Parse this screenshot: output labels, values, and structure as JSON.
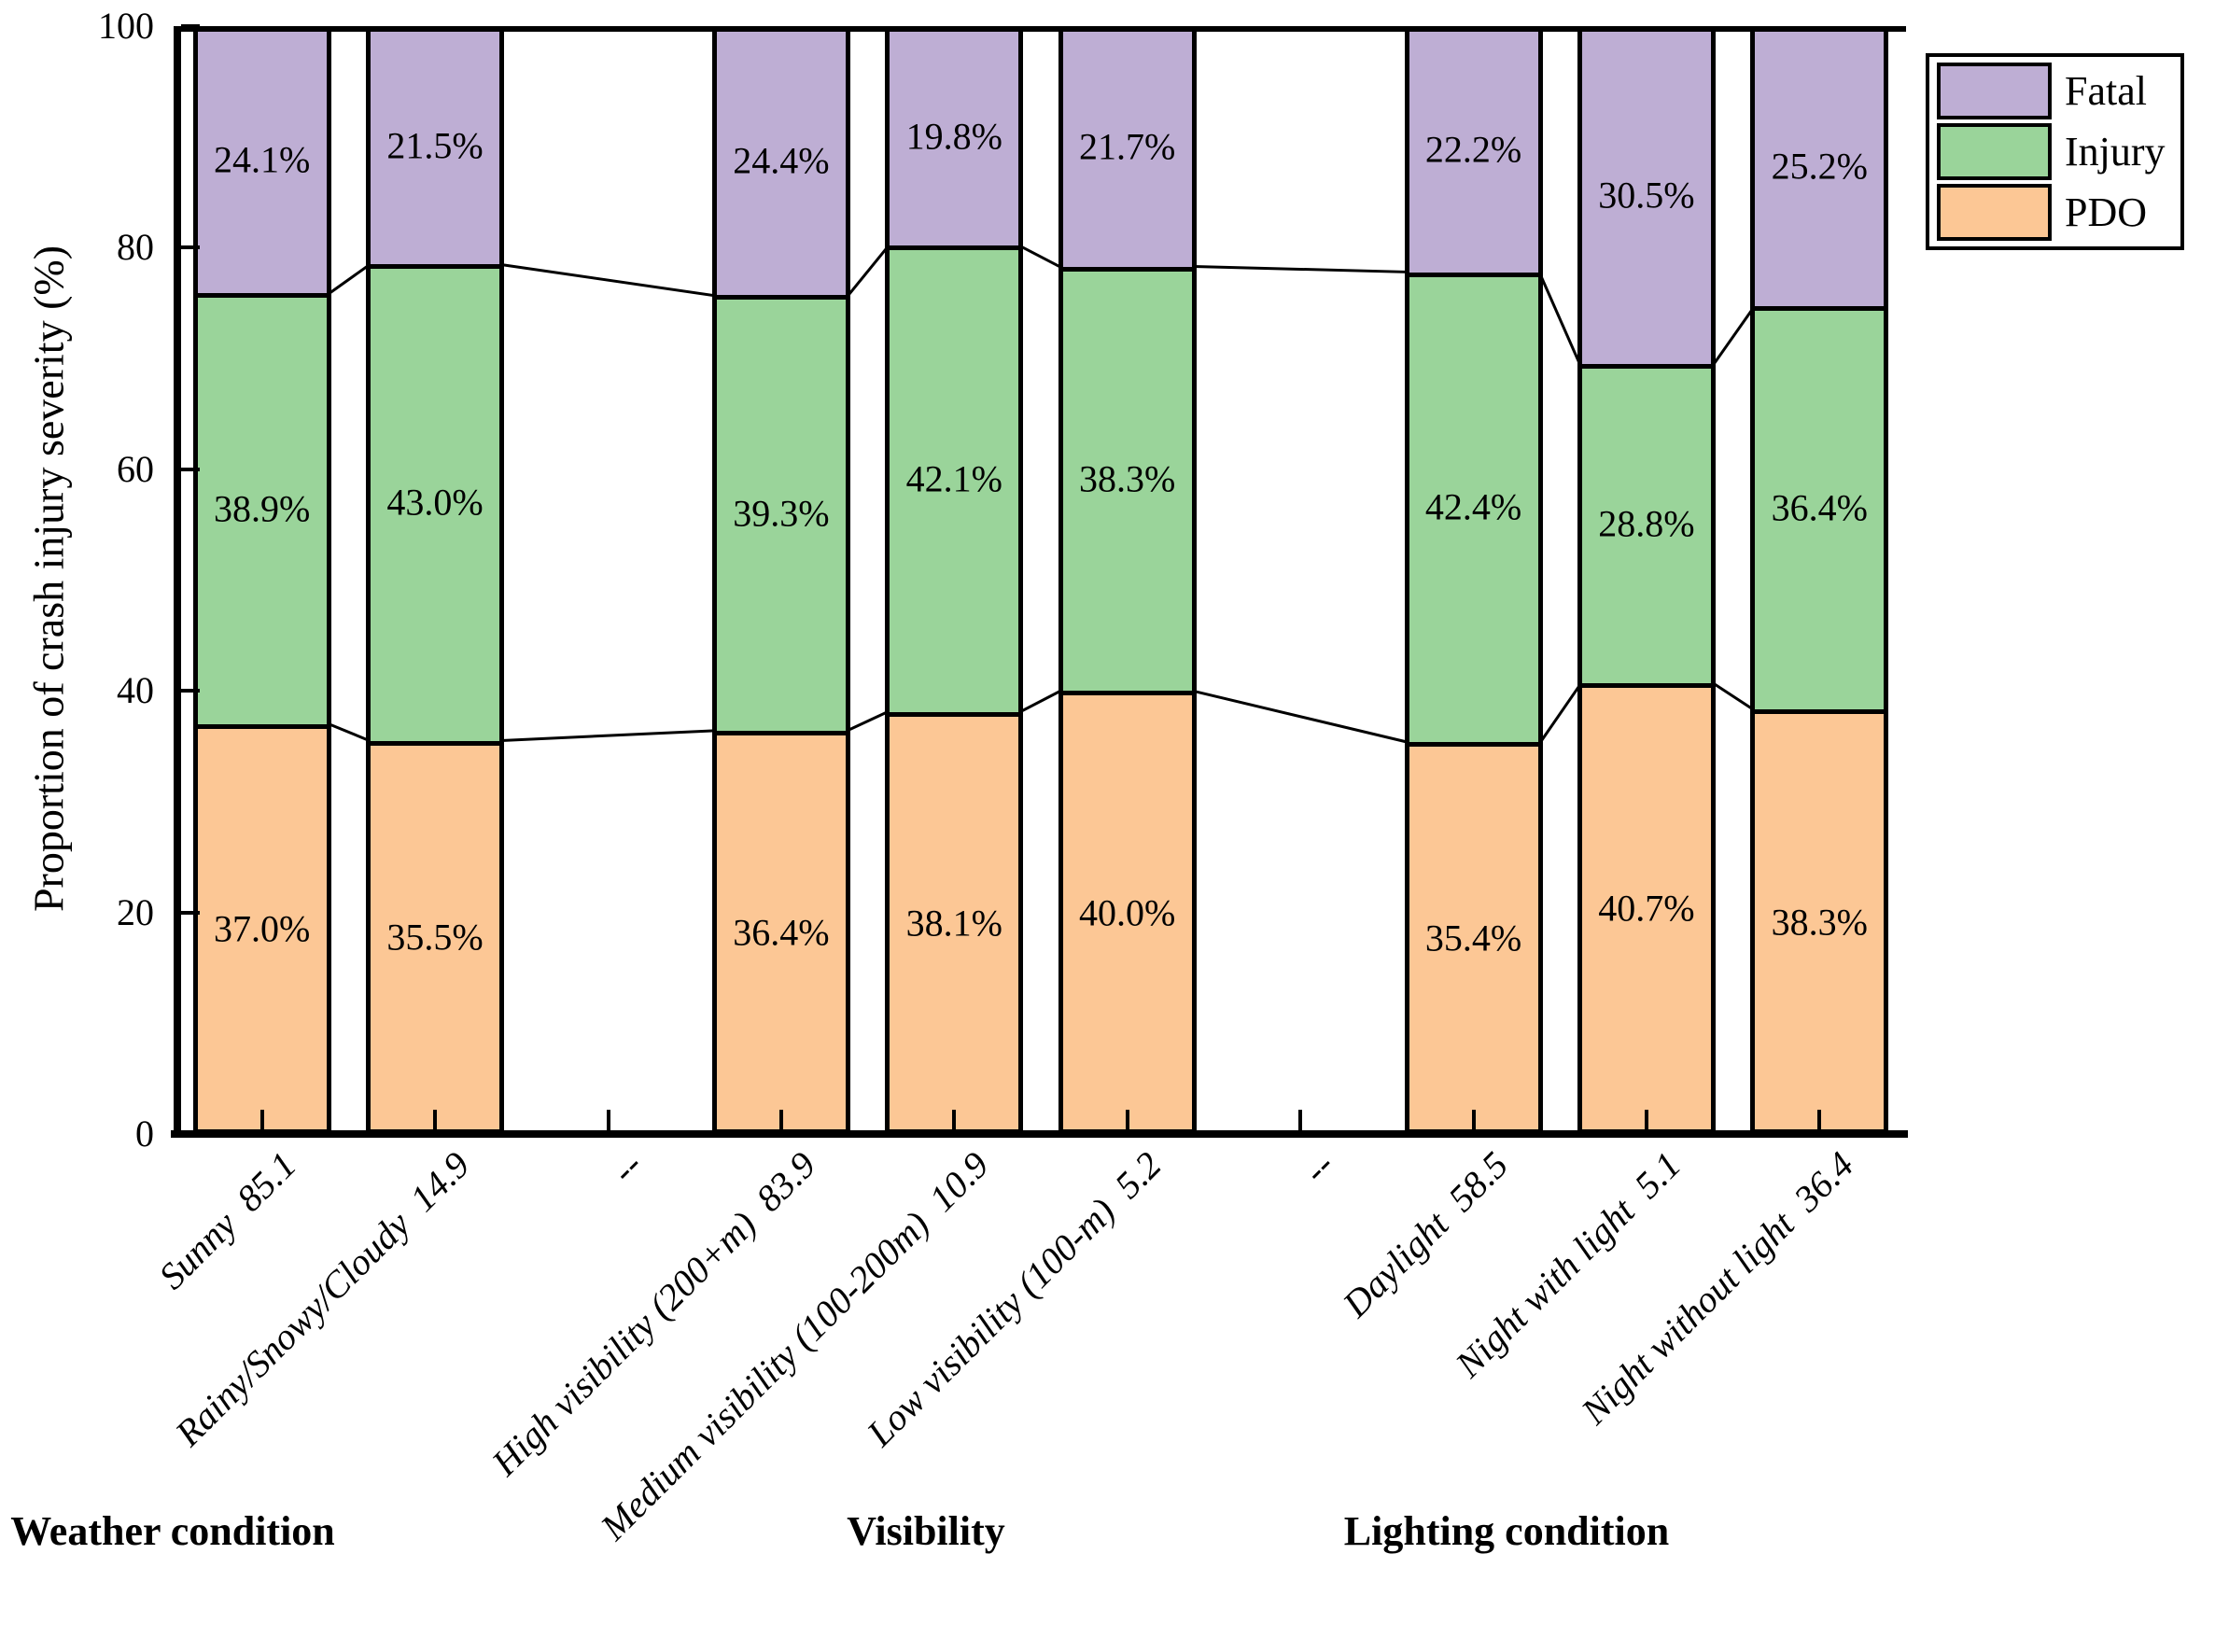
{
  "figure": {
    "background_color": "#ffffff",
    "y_axis": {
      "title": "Proportion of crash injury severity (%)",
      "tick_labels": [
        "0",
        "20",
        "40",
        "60",
        "80",
        "100"
      ],
      "range": [
        0,
        100
      ]
    },
    "x_axis": {
      "group_labels": [
        {
          "label": "Weather condition"
        },
        {
          "label": "Visibility"
        },
        {
          "label": "Lighting condition"
        }
      ]
    },
    "legend": {
      "position": "upper-right",
      "entries": [
        {
          "label": "Fatal",
          "color": "#beaed4"
        },
        {
          "label": "Injury",
          "color": "#9ad49a"
        },
        {
          "label": "PDO",
          "color": "#fcc795"
        }
      ]
    }
  },
  "chart_data": {
    "type": "bar",
    "subtype": "stacked-percentage-with-connectors",
    "title": "",
    "xlabel": "",
    "ylabel": "Proportion of crash injury severity (%)",
    "ylim": [
      0,
      100
    ],
    "grid": false,
    "legend_position": "upper right",
    "series_order_bottom_to_top": [
      "PDO",
      "Injury",
      "Fatal"
    ],
    "series_colors": {
      "PDO": "#fcc795",
      "Injury": "#9ad49a",
      "Fatal": "#beaed4"
    },
    "bar_outline_color": "#000000",
    "categories": [
      {
        "label": "Sunny  85.1",
        "name": "Sunny",
        "group": "Weather condition",
        "share_pct": 85.1,
        "empty": false,
        "values": {
          "PDO": 37.0,
          "Injury": 38.9,
          "Fatal": 24.1
        }
      },
      {
        "label": "Rainy/Snowy/Cloudy  14.9",
        "name": "Rainy/Snowy/Cloudy",
        "group": "Weather condition",
        "share_pct": 14.9,
        "empty": false,
        "values": {
          "PDO": 35.5,
          "Injury": 43.0,
          "Fatal": 21.5
        }
      },
      {
        "label": "--",
        "name": "",
        "group": "",
        "share_pct": null,
        "empty": true,
        "values": null
      },
      {
        "label": "High visibility (200+m)  83.9",
        "name": "High visibility (200+m)",
        "group": "Visibility",
        "share_pct": 83.9,
        "empty": false,
        "values": {
          "PDO": 36.4,
          "Injury": 39.3,
          "Fatal": 24.4
        }
      },
      {
        "label": "Medium visibility (100-200m)  10.9",
        "name": "Medium visibility (100-200m)",
        "group": "Visibility",
        "share_pct": 10.9,
        "empty": false,
        "values": {
          "PDO": 38.1,
          "Injury": 42.1,
          "Fatal": 19.8
        }
      },
      {
        "label": "Low visibility (100-m)  5.2",
        "name": "Low visibility (100-m)",
        "group": "Visibility",
        "share_pct": 5.2,
        "empty": false,
        "values": {
          "PDO": 40.0,
          "Injury": 38.3,
          "Fatal": 21.7
        }
      },
      {
        "label": "--",
        "name": "",
        "group": "",
        "share_pct": null,
        "empty": true,
        "values": null
      },
      {
        "label": "Daylight  58.5",
        "name": "Daylight",
        "group": "Lighting condition",
        "share_pct": 58.5,
        "empty": false,
        "values": {
          "PDO": 35.4,
          "Injury": 42.4,
          "Fatal": 22.2
        }
      },
      {
        "label": "Night with light  5.1",
        "name": "Night with light",
        "group": "Lighting condition",
        "share_pct": 5.1,
        "empty": false,
        "values": {
          "PDO": 40.7,
          "Injury": 28.8,
          "Fatal": 30.5
        }
      },
      {
        "label": "Night without light  36.4",
        "name": "Night without light",
        "group": "Lighting condition",
        "share_pct": 36.4,
        "empty": false,
        "values": {
          "PDO": 38.3,
          "Injury": 36.4,
          "Fatal": 25.2
        }
      }
    ]
  }
}
